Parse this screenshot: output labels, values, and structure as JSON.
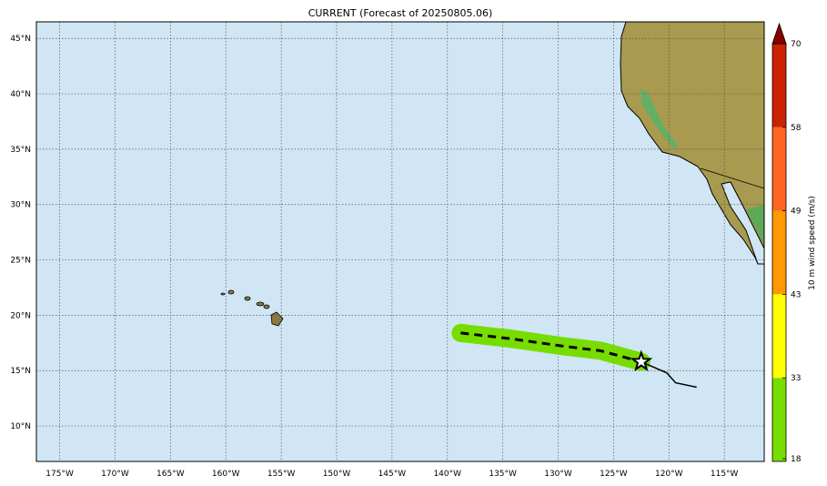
{
  "title": "CURRENT (Forecast of 20250805.06)",
  "map": {
    "lon_range": [
      -177.1,
      -111.4
    ],
    "lat_range": [
      6.8,
      46.5
    ],
    "lon_ticks": [
      -175,
      -170,
      -165,
      -160,
      -155,
      -150,
      -145,
      -140,
      -135,
      -130,
      -125,
      -120,
      -115
    ],
    "lon_tick_labels": [
      "175°W",
      "170°W",
      "165°W",
      "160°W",
      "155°W",
      "150°W",
      "145°W",
      "140°W",
      "135°W",
      "130°W",
      "125°W",
      "120°W",
      "115°W"
    ],
    "lat_ticks": [
      45,
      40,
      35,
      30,
      25,
      20,
      15,
      10
    ],
    "lat_tick_labels": [
      "45°N",
      "40°N",
      "35°N",
      "30°N",
      "25°N",
      "20°N",
      "15°N",
      "10°N"
    ],
    "ocean_color": "#d0e6f5",
    "gridlines": true
  },
  "storm": {
    "current_position": {
      "lon": -122.5,
      "lat": 15.8,
      "marker": "star-icon"
    },
    "past_track": [
      [
        -122.5,
        15.8
      ],
      [
        -120.2,
        14.8
      ],
      [
        -119.4,
        13.9
      ],
      [
        -117.5,
        13.5
      ]
    ],
    "forecast_track": [
      [
        -138.8,
        18.4
      ],
      [
        -134.4,
        17.9
      ],
      [
        -129.5,
        17.2
      ],
      [
        -126.2,
        16.8
      ],
      [
        -122.5,
        15.8
      ]
    ],
    "wind_swath_color": "#77dd00"
  },
  "colorbar": {
    "label": "10 m wind speed (m/s)",
    "ticks": [
      "18",
      "33",
      "43",
      "49",
      "58",
      "70"
    ],
    "colors": [
      "#77dd00",
      "#ffff00",
      "#ff9900",
      "#ff6622",
      "#cc2200"
    ],
    "extend_color": "#880000"
  }
}
